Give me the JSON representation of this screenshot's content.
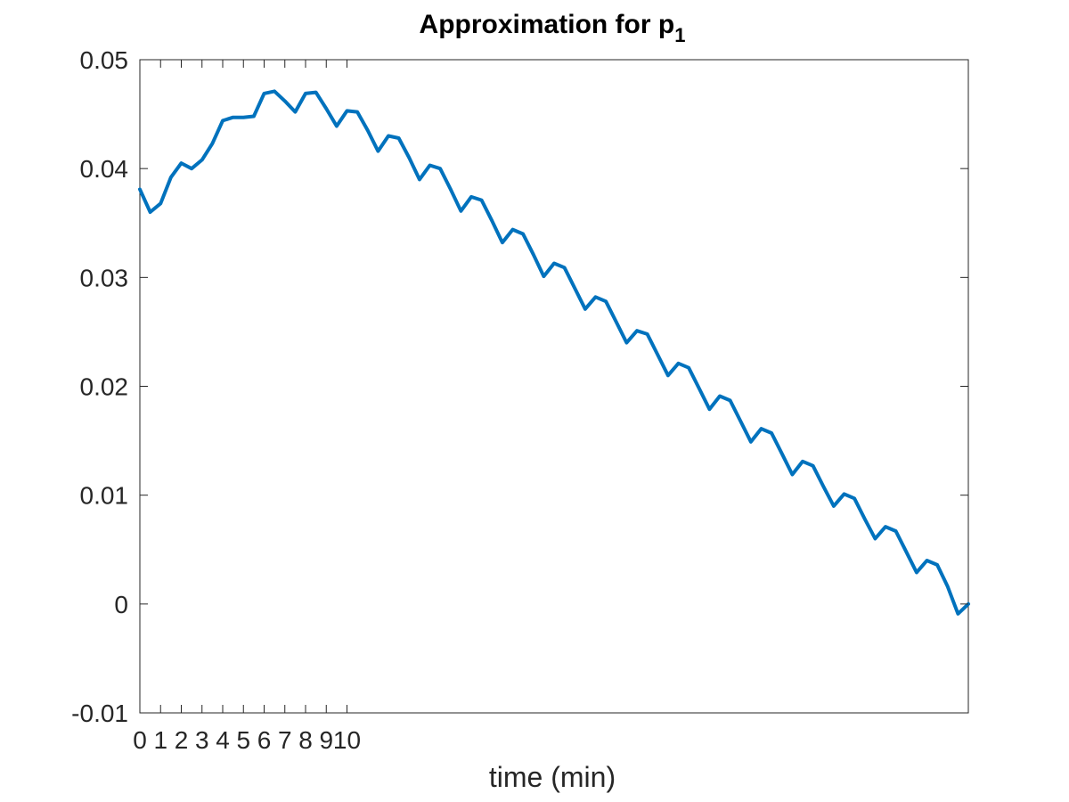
{
  "chart_data": {
    "type": "line",
    "title": "Approximation for p",
    "title_subscript": "1",
    "xlabel": "time (min)",
    "ylabel": "",
    "xlim": [
      0,
      40
    ],
    "ylim": [
      -0.01,
      0.05
    ],
    "x_ticks": [
      0,
      1,
      2,
      3,
      4,
      5,
      6,
      7,
      8,
      9,
      10
    ],
    "x_tick_labels": [
      "0",
      "1",
      "2",
      "3",
      "4",
      "5",
      "6",
      "7",
      "8",
      "9",
      "10"
    ],
    "y_ticks": [
      -0.01,
      0,
      0.01,
      0.02,
      0.03,
      0.04,
      0.05
    ],
    "y_tick_labels": [
      "-0.01",
      "0",
      "0.01",
      "0.02",
      "0.03",
      "0.04",
      "0.05"
    ],
    "grid": false,
    "line_color": "#0072BD",
    "series": [
      {
        "x": [
          0,
          0.5,
          1,
          1.5,
          2,
          2.5,
          3,
          3.5,
          4,
          4.5,
          5,
          5.5,
          6,
          6.5,
          7,
          7.5,
          8,
          8.5,
          9,
          9.5,
          10,
          10.5,
          11,
          11.5,
          12,
          12.5,
          13,
          13.5,
          14,
          14.5,
          15,
          15.5,
          16,
          16.5,
          17,
          17.5,
          18,
          18.5,
          19,
          19.5,
          20,
          20.5,
          21,
          21.5,
          22,
          22.5,
          23,
          23.5,
          24,
          24.5,
          25,
          25.5,
          26,
          26.5,
          27,
          27.5,
          28,
          28.5,
          29,
          29.5,
          30,
          30.5,
          31,
          31.5,
          32,
          32.5,
          33,
          33.5,
          34,
          34.5,
          35,
          35.5,
          36,
          36.5,
          37,
          37.5,
          38,
          38.5,
          39,
          39.5,
          40
        ],
        "y": [
          0.0381,
          0.036,
          0.0368,
          0.0392,
          0.0405,
          0.04,
          0.0408,
          0.0423,
          0.0444,
          0.0447,
          0.0447,
          0.0448,
          0.0469,
          0.0471,
          0.0462,
          0.0452,
          0.0469,
          0.047,
          0.0455,
          0.0439,
          0.0453,
          0.0452,
          0.0435,
          0.0416,
          0.043,
          0.0428,
          0.041,
          0.039,
          0.0403,
          0.04,
          0.0381,
          0.0361,
          0.0374,
          0.0371,
          0.0352,
          0.0332,
          0.0344,
          0.034,
          0.0321,
          0.0301,
          0.0313,
          0.0309,
          0.029,
          0.0271,
          0.0282,
          0.0278,
          0.0259,
          0.024,
          0.0251,
          0.0248,
          0.0229,
          0.021,
          0.0221,
          0.0217,
          0.0198,
          0.0179,
          0.0191,
          0.0187,
          0.0168,
          0.0149,
          0.0161,
          0.0157,
          0.0138,
          0.0119,
          0.0131,
          0.0127,
          0.0108,
          0.009,
          0.0101,
          0.0097,
          0.0078,
          0.006,
          0.0071,
          0.0067,
          0.0048,
          0.0029,
          0.004,
          0.0036,
          0.0016,
          -0.0009,
          0.0
        ]
      }
    ]
  }
}
